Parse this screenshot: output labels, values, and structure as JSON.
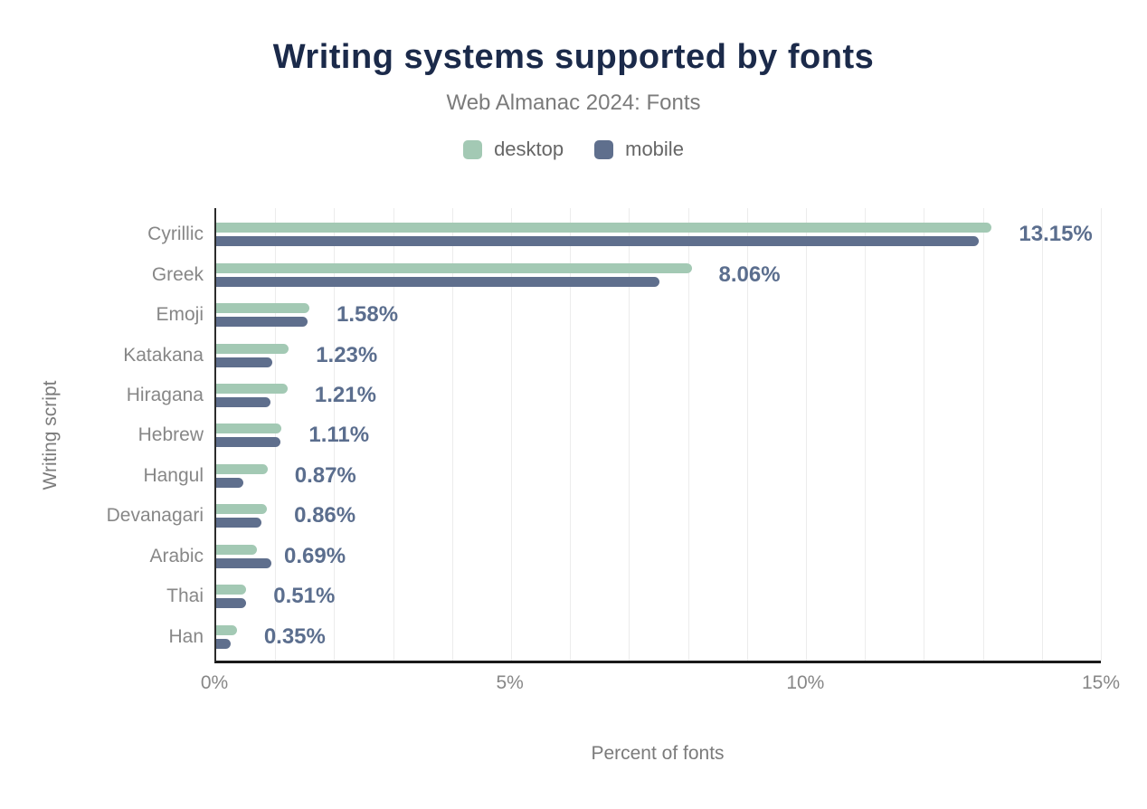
{
  "chart_data": {
    "type": "bar",
    "orientation": "horizontal",
    "title": "Writing systems supported by fonts",
    "subtitle": "Web Almanac 2024: Fonts",
    "categories": [
      "Cyrillic",
      "Greek",
      "Emoji",
      "Katakana",
      "Hiragana",
      "Hebrew",
      "Hangul",
      "Devanagari",
      "Arabic",
      "Thai",
      "Han"
    ],
    "series": [
      {
        "name": "desktop",
        "color": "#a3c9b4",
        "values": [
          13.15,
          8.06,
          1.58,
          1.23,
          1.21,
          1.11,
          0.87,
          0.86,
          0.69,
          0.51,
          0.35
        ]
      },
      {
        "name": "mobile",
        "color": "#5f6f8d",
        "values": [
          12.93,
          7.52,
          1.55,
          0.95,
          0.92,
          1.09,
          0.46,
          0.77,
          0.94,
          0.5,
          0.25
        ]
      }
    ],
    "data_labels": [
      "13.15%",
      "8.06%",
      "1.58%",
      "1.23%",
      "1.21%",
      "1.11%",
      "0.87%",
      "0.86%",
      "0.69%",
      "0.51%",
      "0.35%"
    ],
    "xlabel": "Percent of fonts",
    "ylabel": "Writing script",
    "xlim": [
      0,
      15
    ],
    "gridline_step": 1,
    "grid": true,
    "legend_position": "top",
    "x_ticks": [
      {
        "value": 0,
        "label": "0%"
      },
      {
        "value": 5,
        "label": "5%"
      },
      {
        "value": 10,
        "label": "10%"
      },
      {
        "value": 15,
        "label": "15%"
      }
    ]
  },
  "colors": {
    "title": "#1b2a4a",
    "subtitle": "#7b7b7b",
    "axis_text": "#878787",
    "value_label": "#5b6e8e",
    "gridline": "#ececec",
    "axis_line": "#1a1a1a",
    "background": "#ffffff"
  }
}
